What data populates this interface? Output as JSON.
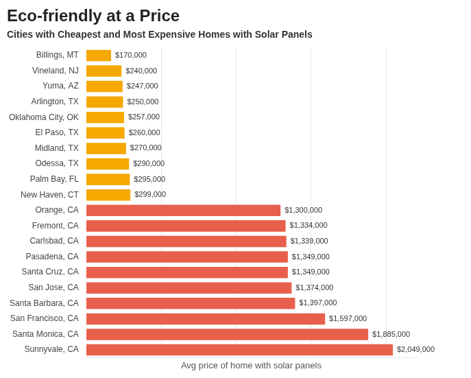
{
  "chart_data": {
    "type": "bar",
    "orientation": "horizontal",
    "title": "Eco-friendly at a Price",
    "subtitle": "Cities with Cheapest and Most Expensive Homes with Solar Panels",
    "xlabel": "Avg price of home with solar panels",
    "categories": [
      "Sunnyvale, CA",
      "Santa Monica, CA",
      "San Francisco, CA",
      "Santa Barbara, CA",
      "San Jose, CA",
      "Santa Cruz, CA",
      "Pasadena, CA",
      "Carlsbad, CA",
      "Fremont, CA",
      "Orange, CA",
      "New Haven, CT",
      "Palm Bay, FL",
      "Odessa, TX",
      "Midland, TX",
      "El Paso, TX",
      "Oklahoma City, OK",
      "Arlington, TX",
      "Yuma, AZ",
      "Vineland, NJ",
      "Billings, MT"
    ],
    "values": [
      2049000,
      1885000,
      1597000,
      1397000,
      1374000,
      1349000,
      1349000,
      1339000,
      1334000,
      1300000,
      299000,
      295000,
      290000,
      270000,
      260000,
      257000,
      250000,
      247000,
      240000,
      170000
    ],
    "value_labels": [
      "$2,049,000",
      "$1,885,000",
      "$1,597,000",
      "$1,397,000",
      "$1,374,000",
      "$1,349,000",
      "$1,349,000",
      "$1,339,000",
      "$1,334,000",
      "$1,300,000",
      "$299,000",
      "$295,000",
      "$290,000",
      "$270,000",
      "$260,000",
      "$257,000",
      "$250,000",
      "$247,000",
      "$240,000",
      "$170,000"
    ],
    "colors": [
      "#E8604C",
      "#E8604C",
      "#E8604C",
      "#E8604C",
      "#E8604C",
      "#E8604C",
      "#E8604C",
      "#E8604C",
      "#E8604C",
      "#E8604C",
      "#F5A800",
      "#F5A800",
      "#F5A800",
      "#F5A800",
      "#F5A800",
      "#F5A800",
      "#F5A800",
      "#F5A800",
      "#F5A800",
      "#F5A800"
    ],
    "xlim": [
      0,
      2200000
    ],
    "xticks": [
      500000,
      1000000,
      1500000,
      2000000
    ],
    "grid": true,
    "data_labels": true,
    "tick_labels": "y"
  }
}
